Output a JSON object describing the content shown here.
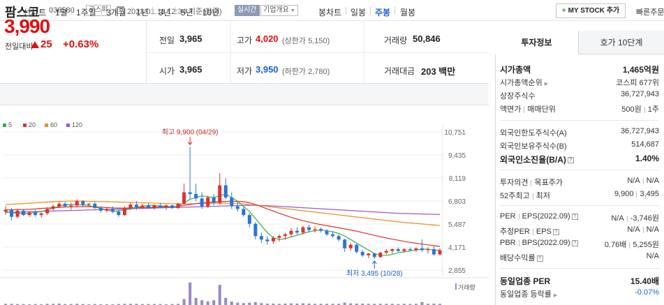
{
  "header": {
    "name": "팜스코",
    "code": "036580",
    "market": "코스피",
    "datetime": "2023.01.11 12:34 기준(장중)",
    "realtime": "실시간",
    "company_overview": "기업개요",
    "mystock_button": "MY STOCK 추가",
    "quick_order": "빠른주문"
  },
  "price": {
    "current": "3,990",
    "change_label": "전일대비",
    "change_amount": "25",
    "change_rate": "+0.63%",
    "up_color": "#e01010"
  },
  "stats": {
    "prev_close_label": "전일",
    "prev_close": "3,965",
    "high_label": "고가",
    "high": "4,020",
    "upper_limit": "(상한가 5,150)",
    "volume_label": "거래량",
    "volume": "50,846",
    "open_label": "시가",
    "open": "3,965",
    "low_label": "저가",
    "low": "3,950",
    "lower_limit": "(하한가 2,780)",
    "value_label": "거래대금",
    "value": "203 백만"
  },
  "period_bar": {
    "line_label": "선차트",
    "line_periods": [
      "1일",
      "1주일",
      "3개월",
      "1년",
      "3년",
      "5년",
      "10년"
    ],
    "candle_label": "봉차트",
    "candle_periods": [
      "일봉",
      "주봉",
      "월봉"
    ],
    "active_candle": "주봉"
  },
  "legend": [
    {
      "label": "5",
      "color": "#3cb043"
    },
    {
      "label": "20",
      "color": "#e03030"
    },
    {
      "label": "60",
      "color": "#e8901a"
    },
    {
      "label": "120",
      "color": "#9b59d0"
    }
  ],
  "chart_data": {
    "type": "candlestick",
    "y_ticks": [
      "10,751",
      "9,435",
      "8,119",
      "6,803",
      "5,487",
      "4,171",
      "2,855"
    ],
    "ylim": [
      2855,
      10751
    ],
    "high_annotation": "최고 9,900 (04/29)",
    "low_annotation": "최저 3,495 (10/28)",
    "volume_label": "거래량",
    "up_color": "#e03030",
    "down_color": "#2a74d9",
    "candles": [
      [
        6200,
        6500,
        6000,
        6300
      ],
      [
        6300,
        6400,
        5700,
        5900
      ],
      [
        5900,
        6350,
        5800,
        6250
      ],
      [
        6250,
        6300,
        5950,
        6000
      ],
      [
        6000,
        6200,
        5900,
        6150
      ],
      [
        6150,
        6300,
        5900,
        6000
      ],
      [
        6000,
        6150,
        5850,
        6100
      ],
      [
        6100,
        6450,
        6000,
        6350
      ],
      [
        6350,
        6600,
        6250,
        6500
      ],
      [
        6500,
        6750,
        6400,
        6650
      ],
      [
        6650,
        6750,
        6450,
        6500
      ],
      [
        6500,
        6700,
        6300,
        6550
      ],
      [
        6550,
        6900,
        6500,
        6800
      ],
      [
        6800,
        6850,
        6500,
        6600
      ],
      [
        6600,
        6700,
        6450,
        6650
      ],
      [
        6650,
        6750,
        6350,
        6400
      ],
      [
        6400,
        6500,
        6150,
        6250
      ],
      [
        6250,
        6450,
        6150,
        6350
      ],
      [
        6350,
        6500,
        6100,
        6200
      ],
      [
        6200,
        6300,
        5900,
        6000
      ],
      [
        6000,
        6500,
        5950,
        6400
      ],
      [
        6400,
        6700,
        6300,
        6600
      ],
      [
        6600,
        6800,
        6300,
        6450
      ],
      [
        6450,
        6650,
        6350,
        6550
      ],
      [
        6550,
        6700,
        6350,
        6400
      ],
      [
        6400,
        6600,
        6300,
        6550
      ],
      [
        6550,
        6700,
        6400,
        6450
      ],
      [
        6450,
        6600,
        6300,
        6550
      ],
      [
        6550,
        6600,
        6350,
        6400
      ],
      [
        6400,
        6700,
        6350,
        6650
      ],
      [
        6650,
        7800,
        6600,
        7300
      ],
      [
        7300,
        9900,
        6900,
        7200
      ],
      [
        7200,
        7800,
        6800,
        6950
      ],
      [
        6950,
        7300,
        6350,
        6500
      ],
      [
        6500,
        7100,
        6400,
        7000
      ],
      [
        7000,
        7200,
        6550,
        6700
      ],
      [
        6700,
        8400,
        6600,
        7700
      ],
      [
        7700,
        8100,
        6900,
        7000
      ],
      [
        7000,
        7300,
        6350,
        6500
      ],
      [
        6500,
        6800,
        6200,
        6350
      ],
      [
        6350,
        6500,
        5900,
        6000
      ],
      [
        6000,
        6100,
        5300,
        5500
      ],
      [
        5500,
        5600,
        4600,
        4800
      ],
      [
        4800,
        5000,
        4400,
        4600
      ],
      [
        4600,
        4800,
        4300,
        4500
      ],
      [
        4500,
        4800,
        4350,
        4700
      ],
      [
        4700,
        4900,
        4500,
        4800
      ],
      [
        4800,
        5000,
        4600,
        4900
      ],
      [
        4900,
        5250,
        4750,
        5100
      ],
      [
        5100,
        5300,
        4900,
        5000
      ],
      [
        5000,
        5400,
        4900,
        5300
      ],
      [
        5300,
        5450,
        5000,
        5150
      ],
      [
        5150,
        5350,
        5000,
        5200
      ],
      [
        5200,
        5300,
        5000,
        5100
      ],
      [
        5100,
        5200,
        4800,
        4900
      ],
      [
        4900,
        5050,
        4700,
        4800
      ],
      [
        4800,
        4900,
        4500,
        4600
      ],
      [
        4600,
        4650,
        3900,
        4100
      ],
      [
        4100,
        4400,
        3950,
        4300
      ],
      [
        4300,
        4350,
        3800,
        3900
      ],
      [
        3900,
        4000,
        3600,
        3700
      ],
      [
        3700,
        3850,
        3550,
        3800
      ],
      [
        3800,
        3850,
        3495,
        3600
      ],
      [
        3600,
        3900,
        3550,
        3850
      ],
      [
        3850,
        4050,
        3750,
        3950
      ],
      [
        3950,
        4100,
        3800,
        4050
      ],
      [
        4050,
        4150,
        3900,
        3950
      ],
      [
        3950,
        4100,
        3850,
        4050
      ],
      [
        4050,
        4150,
        3950,
        4000
      ],
      [
        4000,
        4150,
        3900,
        4100
      ],
      [
        4100,
        4600,
        3900,
        4000
      ],
      [
        4000,
        4150,
        3800,
        4050
      ],
      [
        4050,
        4200,
        3700,
        3750
      ],
      [
        3750,
        4100,
        3700,
        3990
      ]
    ],
    "ma5": [
      6200,
      6150,
      6100,
      6080,
      6100,
      6150,
      6200,
      6280,
      6400,
      6500,
      6580,
      6600,
      6600,
      6580,
      6550,
      6450,
      6380,
      6300,
      6200,
      6250,
      6300,
      6350,
      6450,
      6500,
      6550,
      6560,
      6520,
      6500,
      6480,
      6500,
      6700,
      6900,
      7000,
      7100,
      7050,
      7000,
      7100,
      7200,
      7000,
      6800,
      6500,
      6200,
      5800,
      5400,
      5000,
      4700,
      4600,
      4650,
      4750,
      4850,
      4950,
      5050,
      5100,
      5150,
      5100,
      5050,
      4950,
      4800,
      4600,
      4400,
      4200,
      4000,
      3800,
      3700,
      3700,
      3750,
      3850,
      3900,
      3950,
      4000,
      4050,
      4050,
      4000,
      3990
    ],
    "ma20": [
      6300,
      6300,
      6310,
      6320,
      6330,
      6350,
      6380,
      6400,
      6420,
      6440,
      6460,
      6470,
      6480,
      6480,
      6480,
      6470,
      6450,
      6430,
      6410,
      6400,
      6400,
      6410,
      6420,
      6430,
      6440,
      6450,
      6460,
      6470,
      6480,
      6500,
      6550,
      6600,
      6650,
      6700,
      6720,
      6740,
      6760,
      6780,
      6790,
      6780,
      6760,
      6700,
      6600,
      6480,
      6350,
      6230,
      6100,
      5980,
      5870,
      5770,
      5680,
      5600,
      5520,
      5450,
      5390,
      5330,
      5270,
      5210,
      5150,
      5080,
      5000,
      4920,
      4840,
      4760,
      4690,
      4620,
      4560,
      4500,
      4440,
      4390,
      4340,
      4300,
      4250,
      4210
    ],
    "ma60": [
      6600,
      6620,
      6640,
      6660,
      6680,
      6700,
      6720,
      6740,
      6760,
      6780,
      6790,
      6800,
      6800,
      6800,
      6790,
      6780,
      6770,
      6760,
      6750,
      6740,
      6730,
      6720,
      6710,
      6700,
      6690,
      6680,
      6670,
      6660,
      6650,
      6640,
      6640,
      6640,
      6650,
      6660,
      6670,
      6680,
      6680,
      6680,
      6670,
      6650,
      6630,
      6600,
      6570,
      6530,
      6490,
      6450,
      6410,
      6370,
      6330,
      6290,
      6250,
      6210,
      6170,
      6130,
      6090,
      6050,
      6010,
      5970,
      5930,
      5890,
      5850,
      5810,
      5770,
      5730,
      5690,
      5650,
      5610,
      5580,
      5550,
      5520,
      5490,
      5460,
      5430,
      5400
    ],
    "ma120": [
      6150,
      6160,
      6170,
      6180,
      6190,
      6200,
      6210,
      6220,
      6230,
      6240,
      6250,
      6260,
      6270,
      6280,
      6290,
      6300,
      6310,
      6320,
      6330,
      6340,
      6350,
      6360,
      6370,
      6380,
      6390,
      6400,
      6410,
      6420,
      6430,
      6440,
      6450,
      6460,
      6470,
      6480,
      6490,
      6500,
      6510,
      6520,
      6530,
      6540,
      6550,
      6560,
      6560,
      6550,
      6540,
      6520,
      6500,
      6480,
      6460,
      6440,
      6420,
      6400,
      6380,
      6360,
      6340,
      6320,
      6300,
      6280,
      6260,
      6240,
      6220,
      6200,
      6180,
      6160,
      6140,
      6120,
      6100,
      6090,
      6080,
      6070,
      6060,
      6050,
      6040,
      6030
    ],
    "volume": [
      0.05,
      0.05,
      0.04,
      0.04,
      0.03,
      0.04,
      0.03,
      0.05,
      0.05,
      0.06,
      0.04,
      0.04,
      0.05,
      0.04,
      0.03,
      0.04,
      0.03,
      0.03,
      0.03,
      0.04,
      0.05,
      0.05,
      0.05,
      0.04,
      0.04,
      0.04,
      0.04,
      0.03,
      0.04,
      0.05,
      0.25,
      0.95,
      0.3,
      0.2,
      0.15,
      0.2,
      0.85,
      0.3,
      0.15,
      0.1,
      0.08,
      0.1,
      0.12,
      0.08,
      0.06,
      0.06,
      0.05,
      0.06,
      0.07,
      0.06,
      0.07,
      0.06,
      0.05,
      0.05,
      0.05,
      0.05,
      0.05,
      0.1,
      0.07,
      0.06,
      0.06,
      0.05,
      0.05,
      0.05,
      0.05,
      0.05,
      0.04,
      0.05,
      0.04,
      0.05,
      0.12,
      0.05,
      0.06,
      0.05
    ]
  },
  "right_panel": {
    "tab_invest": "투자정보",
    "tab_hoga": "호가 10단계",
    "market_cap_label": "시가총액",
    "market_cap": "1,465억원",
    "market_cap_rank_label": "시가총액순위",
    "market_cap_rank": "코스피 677위",
    "shares_label": "상장주식수",
    "shares": "36,727,943",
    "par_label": "액면가",
    "unit_label": "매매단위",
    "par": "500원",
    "unit": "1주",
    "foreign_limit_label": "외국인한도주식수(A)",
    "foreign_limit": "36,727,943",
    "foreign_hold_label": "외국인보유주식수(B)",
    "foreign_hold": "514,687",
    "foreign_ratio_label": "외국인소진율(B/A)",
    "foreign_ratio": "1.40%",
    "opinion_label": "투자의견",
    "target_label": "목표주가",
    "opinion": "N/A",
    "target": "N/A",
    "w52_label": "52주최고",
    "w52_low_label": "최저",
    "w52_high": "9,900",
    "w52_low": "3,495",
    "per_label": "PER",
    "eps_label": "EPS(2022.09)",
    "per": "N/A",
    "eps": "-3,746원",
    "est_per_label": "추정PER",
    "est_eps_label": "EPS",
    "est_per": "N/A",
    "est_eps": "N/A",
    "pbr_label": "PBR",
    "bps_label": "BPS(2022.09)",
    "pbr": "0.76배",
    "bps": "5,255원",
    "div_label": "배당수익률",
    "div": "N/A",
    "industry_per_label": "동일업종 PER",
    "industry_per": "15.40배",
    "industry_change_label": "동일업종 등락률",
    "industry_change": "-0.07%"
  }
}
